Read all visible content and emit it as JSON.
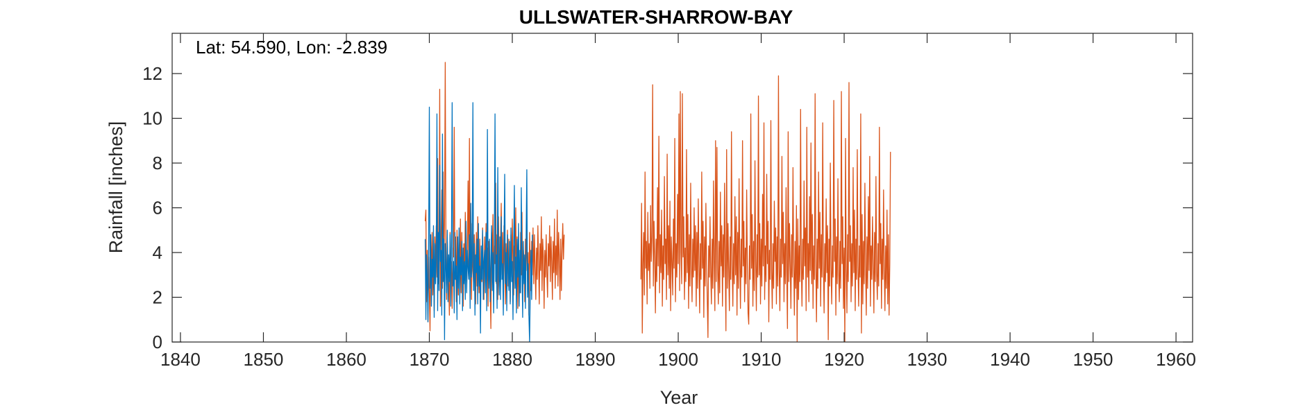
{
  "chart_data": {
    "type": "line",
    "title": "ULLSWATER-SHARROW-BAY",
    "annotation": "Lat: 54.590, Lon: -2.839",
    "xlabel": "Year",
    "ylabel": "Rainfall [inches]",
    "xlim": [
      1839,
      1962
    ],
    "ylim": [
      0,
      13.8
    ],
    "xticks": [
      1840,
      1850,
      1860,
      1870,
      1880,
      1890,
      1900,
      1910,
      1920,
      1930,
      1940,
      1950,
      1960
    ],
    "yticks": [
      0,
      2,
      4,
      6,
      8,
      10,
      12
    ],
    "grid": false,
    "legend": "none",
    "series": [
      {
        "color": "#D95319",
        "start": 1869.5,
        "step": 0.08333,
        "values": [
          5.4,
          5.9,
          1.8,
          4.1,
          0.9,
          3.8,
          2.2,
          0.5,
          4.3,
          3.3,
          4.9,
          2.1,
          3.6,
          1.4,
          4.7,
          3.1,
          5.2,
          2.9,
          8.2,
          2.6,
          3.7,
          11.3,
          1.6,
          4.6,
          6.8,
          2.4,
          7.6,
          3.2,
          5.6,
          12.5,
          4.2,
          1.9,
          4.5,
          3.4,
          2.6,
          1.2,
          4.9,
          2.9,
          3.6,
          1.5,
          4.2,
          3.8,
          9.6,
          2.8,
          4.7,
          1.8,
          5.0,
          3.4,
          2.1,
          4.6,
          3.3,
          5.5,
          2.2,
          4.9,
          3.1,
          1.6,
          4.4,
          2.8,
          5.8,
          3.6,
          2.4,
          4.3,
          7.2,
          3.1,
          9.1,
          2.8,
          4.4,
          1.9,
          5.3,
          3.2,
          2.6,
          4.8,
          3.5,
          1.7,
          4.9,
          2.5,
          5.6,
          3.3,
          2.2,
          4.6,
          1.4,
          3.9,
          2.7,
          5.1,
          3.4,
          1.9,
          4.7,
          3.0,
          5.3,
          2.3,
          4.2,
          1.6,
          4.5,
          3.2,
          2.4,
          0.6,
          4.9,
          3.6,
          5.7,
          2.1,
          4.3,
          3.5,
          7.1,
          2.6,
          4.8,
          1.9,
          5.6,
          3.3,
          2.7,
          4.5,
          6.2,
          3.0,
          4.9,
          2.2,
          5.2,
          3.8,
          1.7,
          4.4,
          3.1,
          5.0,
          2.5,
          4.6,
          3.4,
          1.8,
          4.8,
          2.9,
          5.5,
          3.6,
          2.1,
          4.3,
          3.2,
          6.0,
          2.6,
          4.7,
          1.5,
          4.4,
          3.3,
          2.2,
          4.9,
          3.0,
          5.8,
          2.4,
          4.1,
          3.7,
          1.8,
          4.6,
          3.2,
          5.3,
          2.7,
          4.0,
          1.2,
          4.9,
          3.5,
          2.3,
          4.5,
          3.0,
          5.1,
          2.6,
          4.8,
          3.3,
          1.9,
          4.2,
          2.8,
          5.2,
          3.6,
          1.7,
          4.4,
          3.2,
          5.6,
          2.3,
          4.6,
          3.8,
          1.5,
          4.1,
          2.9,
          4.8,
          3.1,
          2.0,
          4.4,
          3.4,
          5.2,
          2.7,
          4.7,
          3.6,
          1.9,
          4.5,
          3.1,
          5.5,
          2.4,
          4.3,
          3.0,
          5.9,
          2.5,
          4.9,
          3.8,
          1.9,
          4.6,
          2.3,
          4.1,
          5.3,
          3.7,
          4.8
        ]
      },
      {
        "color": "#D95319",
        "start": 1895.5,
        "step": 0.08333,
        "values": [
          2.8,
          6.2,
          0.4,
          3.5,
          4.9,
          2.1,
          7.6,
          3.3,
          4.5,
          1.7,
          5.8,
          3.2,
          4.4,
          2.4,
          6.1,
          3.6,
          4.7,
          11.5,
          2.5,
          5.4,
          3.8,
          1.3,
          4.6,
          2.7,
          6.9,
          3.4,
          9.2,
          2.2,
          4.8,
          3.1,
          5.9,
          1.6,
          4.3,
          2.8,
          7.4,
          3.5,
          4.6,
          1.9,
          8.4,
          3.0,
          5.2,
          2.4,
          6.3,
          1.4,
          4.7,
          3.6,
          2.1,
          5.5,
          3.3,
          9.1,
          1.8,
          4.4,
          2.9,
          6.6,
          3.5,
          10.2,
          2.3,
          11.2,
          4.0,
          2.6,
          11.1,
          3.8,
          5.6,
          1.9,
          4.2,
          2.7,
          8.6,
          3.1,
          5.7,
          1.5,
          4.8,
          2.5,
          7.1,
          3.4,
          1.8,
          4.6,
          2.9,
          6.0,
          3.2,
          5.2,
          1.6,
          4.9,
          2.4,
          6.4,
          3.6,
          1.3,
          4.4,
          2.8,
          7.6,
          3.3,
          5.4,
          1.1,
          4.7,
          2.5,
          6.2,
          3.6,
          1.9,
          0.2,
          4.3,
          2.9,
          5.6,
          3.1,
          1.7,
          4.6,
          2.4,
          7.2,
          3.5,
          1.4,
          9.0,
          2.7,
          8.7,
          3.3,
          1.7,
          4.5,
          2.2,
          6.7,
          3.4,
          5.2,
          1.6,
          4.8,
          2.9,
          7.1,
          3.6,
          0.5,
          8.6,
          2.4,
          5.3,
          3.2,
          1.4,
          4.7,
          2.8,
          9.4,
          3.5,
          1.6,
          4.4,
          2.6,
          6.5,
          3.0,
          5.6,
          1.2,
          4.9,
          2.4,
          7.3,
          3.6,
          1.5,
          4.6,
          2.9,
          9.0,
          3.4,
          5.4,
          1.8,
          4.2,
          2.6,
          6.8,
          3.5,
          1.3,
          0.8,
          4.3,
          2.8,
          10.2,
          3.3,
          5.7,
          1.6,
          4.5,
          2.3,
          8.1,
          3.6,
          1.4,
          4.8,
          2.9,
          11.0,
          3.0,
          5.3,
          1.7,
          4.6,
          2.5,
          6.6,
          3.4,
          9.8,
          1.9,
          4.3,
          2.7,
          7.5,
          3.5,
          5.4,
          0.9,
          4.1,
          2.8,
          9.9,
          3.2,
          1.5,
          4.4,
          2.4,
          6.3,
          3.6,
          5.1,
          1.7,
          4.7,
          2.5,
          11.9,
          3.3,
          1.4,
          4.6,
          2.9,
          8.3,
          3.5,
          5.8,
          1.8,
          4.4,
          2.6,
          6.9,
          3.1,
          0.6,
          9.4,
          2.7,
          5.3,
          3.4,
          1.5,
          4.8,
          2.9,
          7.8,
          3.6,
          1.2,
          4.5,
          2.4,
          6.1,
          0.0,
          5.5,
          1.9,
          4.3,
          2.7,
          10.4,
          3.5,
          1.6,
          4.6,
          2.8,
          7.2,
          3.4,
          5.1,
          1.4,
          9.6,
          2.9,
          4.4,
          1.8,
          6.5,
          3.2,
          8.9,
          2.6,
          5.7,
          1.5,
          4.3,
          2.8,
          11.1,
          3.6,
          0.9,
          4.6,
          2.4,
          7.6,
          3.3,
          5.8,
          1.6,
          4.8,
          2.9,
          9.8,
          3.5,
          1.3,
          4.4,
          2.7,
          6.4,
          3.1,
          5.2,
          0.1,
          4.6,
          2.5,
          8.0,
          3.4,
          1.7,
          4.3,
          2.9,
          10.8,
          3.6,
          5.5,
          1.2,
          4.7,
          2.6,
          7.3,
          3.2,
          1.8,
          4.5,
          2.4,
          11.2,
          3.5,
          5.6,
          1.5,
          4.2,
          0.0,
          9.1,
          3.3,
          1.3,
          4.8,
          2.7,
          11.6,
          3.6,
          5.2,
          1.8,
          4.4,
          2.5,
          7.8,
          3.1,
          5.9,
          1.4,
          4.6,
          2.8,
          8.6,
          3.4,
          1.6,
          4.3,
          2.9,
          10.2,
          0.4,
          5.7,
          1.7,
          4.5,
          2.6,
          7.1,
          3.5,
          1.2,
          4.7,
          2.4,
          6.5,
          3.2,
          8.3,
          1.6,
          4.3,
          2.8,
          5.6,
          3.6,
          1.3,
          4.9,
          2.7,
          7.4,
          3.1,
          1.9,
          4.4,
          2.5,
          9.6,
          3.5,
          5.3,
          1.5,
          4.6,
          2.8,
          6.8,
          3.3,
          1.4,
          4.3,
          2.4,
          5.9,
          1.7,
          4.8,
          1.2,
          3.5,
          8.5
        ]
      },
      {
        "color": "#0072BD",
        "start": 1869.5,
        "step": 0.08333,
        "values": [
          4.6,
          1.0,
          3.9,
          2.8,
          0.9,
          4.5,
          10.5,
          2.4,
          4.8,
          1.6,
          3.7,
          2.9,
          5.2,
          1.1,
          4.4,
          2.6,
          3.8,
          10.2,
          1.4,
          4.9,
          2.3,
          7.9,
          3.6,
          4.1,
          1.2,
          9.3,
          2.7,
          4.6,
          0.1,
          4.4,
          3.3,
          2.2,
          5.0,
          1.8,
          3.9,
          2.7,
          4.8,
          1.6,
          4.3,
          10.7,
          2.5,
          3.6,
          1.3,
          4.9,
          2.8,
          3.4,
          1.0,
          4.7,
          2.4,
          5.1,
          1.7,
          3.8,
          3.0,
          4.5,
          1.4,
          4.2,
          2.6,
          3.6,
          1.9,
          5.4,
          2.2,
          4.1,
          3.3,
          2.8,
          4.8,
          1.5,
          6.2,
          2.9,
          3.7,
          10.7,
          2.3,
          4.4,
          1.2,
          3.9,
          3.1,
          4.6,
          1.7,
          5.3,
          2.5,
          3.4,
          0.4,
          4.3,
          2.8,
          5.0,
          1.9,
          3.6,
          4.1,
          2.2,
          4.9,
          1.4,
          9.5,
          3.0,
          2.4,
          4.6,
          1.8,
          3.7,
          5.2,
          2.3,
          4.0,
          1.3,
          4.4,
          10.2,
          2.7,
          3.9,
          1.5,
          7.8,
          3.2,
          2.1,
          4.7,
          1.9,
          5.6,
          2.8,
          3.5,
          1.2,
          4.3,
          7.5,
          2.6,
          4.0,
          1.4,
          4.8,
          3.1,
          2.3,
          4.5,
          1.7,
          5.1,
          2.7,
          3.6,
          1.0,
          4.2,
          7.0,
          2.4,
          3.8,
          1.3,
          4.6,
          2.9,
          5.3,
          1.6,
          4.1,
          2.2,
          6.9,
          3.4,
          1.1,
          4.5,
          2.6,
          3.9,
          1.5,
          4.7,
          7.7,
          2.0,
          3.5,
          1.2,
          0.0,
          2.3,
          4.1,
          1.9,
          4.8
        ]
      }
    ]
  }
}
